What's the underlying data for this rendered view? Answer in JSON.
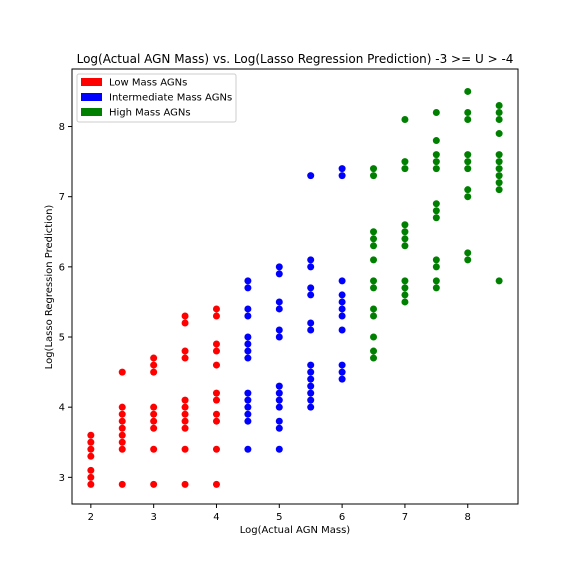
{
  "chart_data": {
    "type": "scatter",
    "title": "Log(Actual AGN Mass) vs. Log(Lasso Regression Prediction) -3 >= U > -4",
    "xlabel": "Log(Actual AGN Mass)",
    "ylabel": "Log(Lasso Regression Prediction)",
    "xlim": [
      1.7,
      8.8
    ],
    "ylim": [
      2.62,
      8.82
    ],
    "xticks": [
      2,
      3,
      4,
      5,
      6,
      7,
      8
    ],
    "yticks": [
      3,
      4,
      5,
      6,
      7,
      8
    ],
    "grid": false,
    "legend_position": "top-left",
    "series": [
      {
        "name": "Low Mass AGNs",
        "color": "#ff0000",
        "points": [
          [
            2.0,
            2.9
          ],
          [
            2.0,
            3.0
          ],
          [
            2.0,
            3.1
          ],
          [
            2.0,
            3.3
          ],
          [
            2.0,
            3.4
          ],
          [
            2.0,
            3.5
          ],
          [
            2.0,
            3.6
          ],
          [
            2.5,
            2.9
          ],
          [
            2.5,
            3.4
          ],
          [
            2.5,
            3.5
          ],
          [
            2.5,
            3.6
          ],
          [
            2.5,
            3.7
          ],
          [
            2.5,
            3.8
          ],
          [
            2.5,
            3.9
          ],
          [
            2.5,
            4.0
          ],
          [
            2.5,
            4.5
          ],
          [
            3.0,
            2.9
          ],
          [
            3.0,
            3.4
          ],
          [
            3.0,
            3.7
          ],
          [
            3.0,
            3.8
          ],
          [
            3.0,
            3.9
          ],
          [
            3.0,
            4.0
          ],
          [
            3.0,
            4.5
          ],
          [
            3.0,
            4.6
          ],
          [
            3.0,
            4.7
          ],
          [
            3.5,
            2.9
          ],
          [
            3.5,
            3.4
          ],
          [
            3.5,
            3.7
          ],
          [
            3.5,
            3.8
          ],
          [
            3.5,
            3.9
          ],
          [
            3.5,
            4.0
          ],
          [
            3.5,
            4.1
          ],
          [
            3.5,
            4.7
          ],
          [
            3.5,
            4.8
          ],
          [
            3.5,
            5.2
          ],
          [
            3.5,
            5.3
          ],
          [
            4.0,
            2.9
          ],
          [
            4.0,
            3.4
          ],
          [
            4.0,
            3.8
          ],
          [
            4.0,
            3.9
          ],
          [
            4.0,
            4.1
          ],
          [
            4.0,
            4.2
          ],
          [
            4.0,
            4.6
          ],
          [
            4.0,
            4.8
          ],
          [
            4.0,
            4.9
          ],
          [
            4.0,
            5.3
          ],
          [
            4.0,
            5.4
          ]
        ]
      },
      {
        "name": "Intermediate Mass AGNs",
        "color": "#0000ff",
        "points": [
          [
            4.5,
            3.4
          ],
          [
            4.5,
            3.8
          ],
          [
            4.5,
            3.9
          ],
          [
            4.5,
            4.0
          ],
          [
            4.5,
            4.1
          ],
          [
            4.5,
            4.2
          ],
          [
            4.5,
            4.7
          ],
          [
            4.5,
            4.8
          ],
          [
            4.5,
            4.9
          ],
          [
            4.5,
            5.0
          ],
          [
            4.5,
            5.3
          ],
          [
            4.5,
            5.4
          ],
          [
            4.5,
            5.7
          ],
          [
            4.5,
            5.8
          ],
          [
            5.0,
            3.4
          ],
          [
            5.0,
            3.7
          ],
          [
            5.0,
            3.8
          ],
          [
            5.0,
            4.0
          ],
          [
            5.0,
            4.1
          ],
          [
            5.0,
            4.2
          ],
          [
            5.0,
            4.3
          ],
          [
            5.0,
            5.0
          ],
          [
            5.0,
            5.1
          ],
          [
            5.0,
            5.4
          ],
          [
            5.0,
            5.5
          ],
          [
            5.0,
            5.9
          ],
          [
            5.0,
            6.0
          ],
          [
            5.5,
            4.0
          ],
          [
            5.5,
            4.1
          ],
          [
            5.5,
            4.2
          ],
          [
            5.5,
            4.3
          ],
          [
            5.5,
            4.4
          ],
          [
            5.5,
            4.5
          ],
          [
            5.5,
            4.6
          ],
          [
            5.5,
            5.1
          ],
          [
            5.5,
            5.2
          ],
          [
            5.5,
            5.6
          ],
          [
            5.5,
            5.7
          ],
          [
            5.5,
            6.0
          ],
          [
            5.5,
            6.1
          ],
          [
            5.5,
            7.3
          ],
          [
            6.0,
            4.4
          ],
          [
            6.0,
            4.5
          ],
          [
            6.0,
            4.6
          ],
          [
            6.0,
            5.1
          ],
          [
            6.0,
            5.3
          ],
          [
            6.0,
            5.4
          ],
          [
            6.0,
            5.5
          ],
          [
            6.0,
            5.6
          ],
          [
            6.0,
            5.8
          ],
          [
            6.0,
            7.3
          ],
          [
            6.0,
            7.4
          ]
        ]
      },
      {
        "name": "High Mass AGNs",
        "color": "#008000",
        "points": [
          [
            6.5,
            4.7
          ],
          [
            6.5,
            4.8
          ],
          [
            6.5,
            5.0
          ],
          [
            6.5,
            5.3
          ],
          [
            6.5,
            5.4
          ],
          [
            6.5,
            5.7
          ],
          [
            6.5,
            5.8
          ],
          [
            6.5,
            6.1
          ],
          [
            6.5,
            6.3
          ],
          [
            6.5,
            6.4
          ],
          [
            6.5,
            6.5
          ],
          [
            6.5,
            7.3
          ],
          [
            6.5,
            7.4
          ],
          [
            7.0,
            5.5
          ],
          [
            7.0,
            5.6
          ],
          [
            7.0,
            5.7
          ],
          [
            7.0,
            5.8
          ],
          [
            7.0,
            6.3
          ],
          [
            7.0,
            6.4
          ],
          [
            7.0,
            6.5
          ],
          [
            7.0,
            6.6
          ],
          [
            7.0,
            7.4
          ],
          [
            7.0,
            7.5
          ],
          [
            7.0,
            8.1
          ],
          [
            7.5,
            5.7
          ],
          [
            7.5,
            5.8
          ],
          [
            7.5,
            6.0
          ],
          [
            7.5,
            6.1
          ],
          [
            7.5,
            6.7
          ],
          [
            7.5,
            6.8
          ],
          [
            7.5,
            6.9
          ],
          [
            7.5,
            7.4
          ],
          [
            7.5,
            7.5
          ],
          [
            7.5,
            7.6
          ],
          [
            7.5,
            7.8
          ],
          [
            7.5,
            8.2
          ],
          [
            8.0,
            6.1
          ],
          [
            8.0,
            6.2
          ],
          [
            8.0,
            7.0
          ],
          [
            8.0,
            7.1
          ],
          [
            8.0,
            7.4
          ],
          [
            8.0,
            7.5
          ],
          [
            8.0,
            7.6
          ],
          [
            8.0,
            8.1
          ],
          [
            8.0,
            8.2
          ],
          [
            8.0,
            8.5
          ],
          [
            8.5,
            5.8
          ],
          [
            8.5,
            7.1
          ],
          [
            8.5,
            7.2
          ],
          [
            8.5,
            7.3
          ],
          [
            8.5,
            7.4
          ],
          [
            8.5,
            7.5
          ],
          [
            8.5,
            7.6
          ],
          [
            8.5,
            7.9
          ],
          [
            8.5,
            8.1
          ],
          [
            8.5,
            8.2
          ],
          [
            8.5,
            8.3
          ]
        ]
      }
    ]
  }
}
